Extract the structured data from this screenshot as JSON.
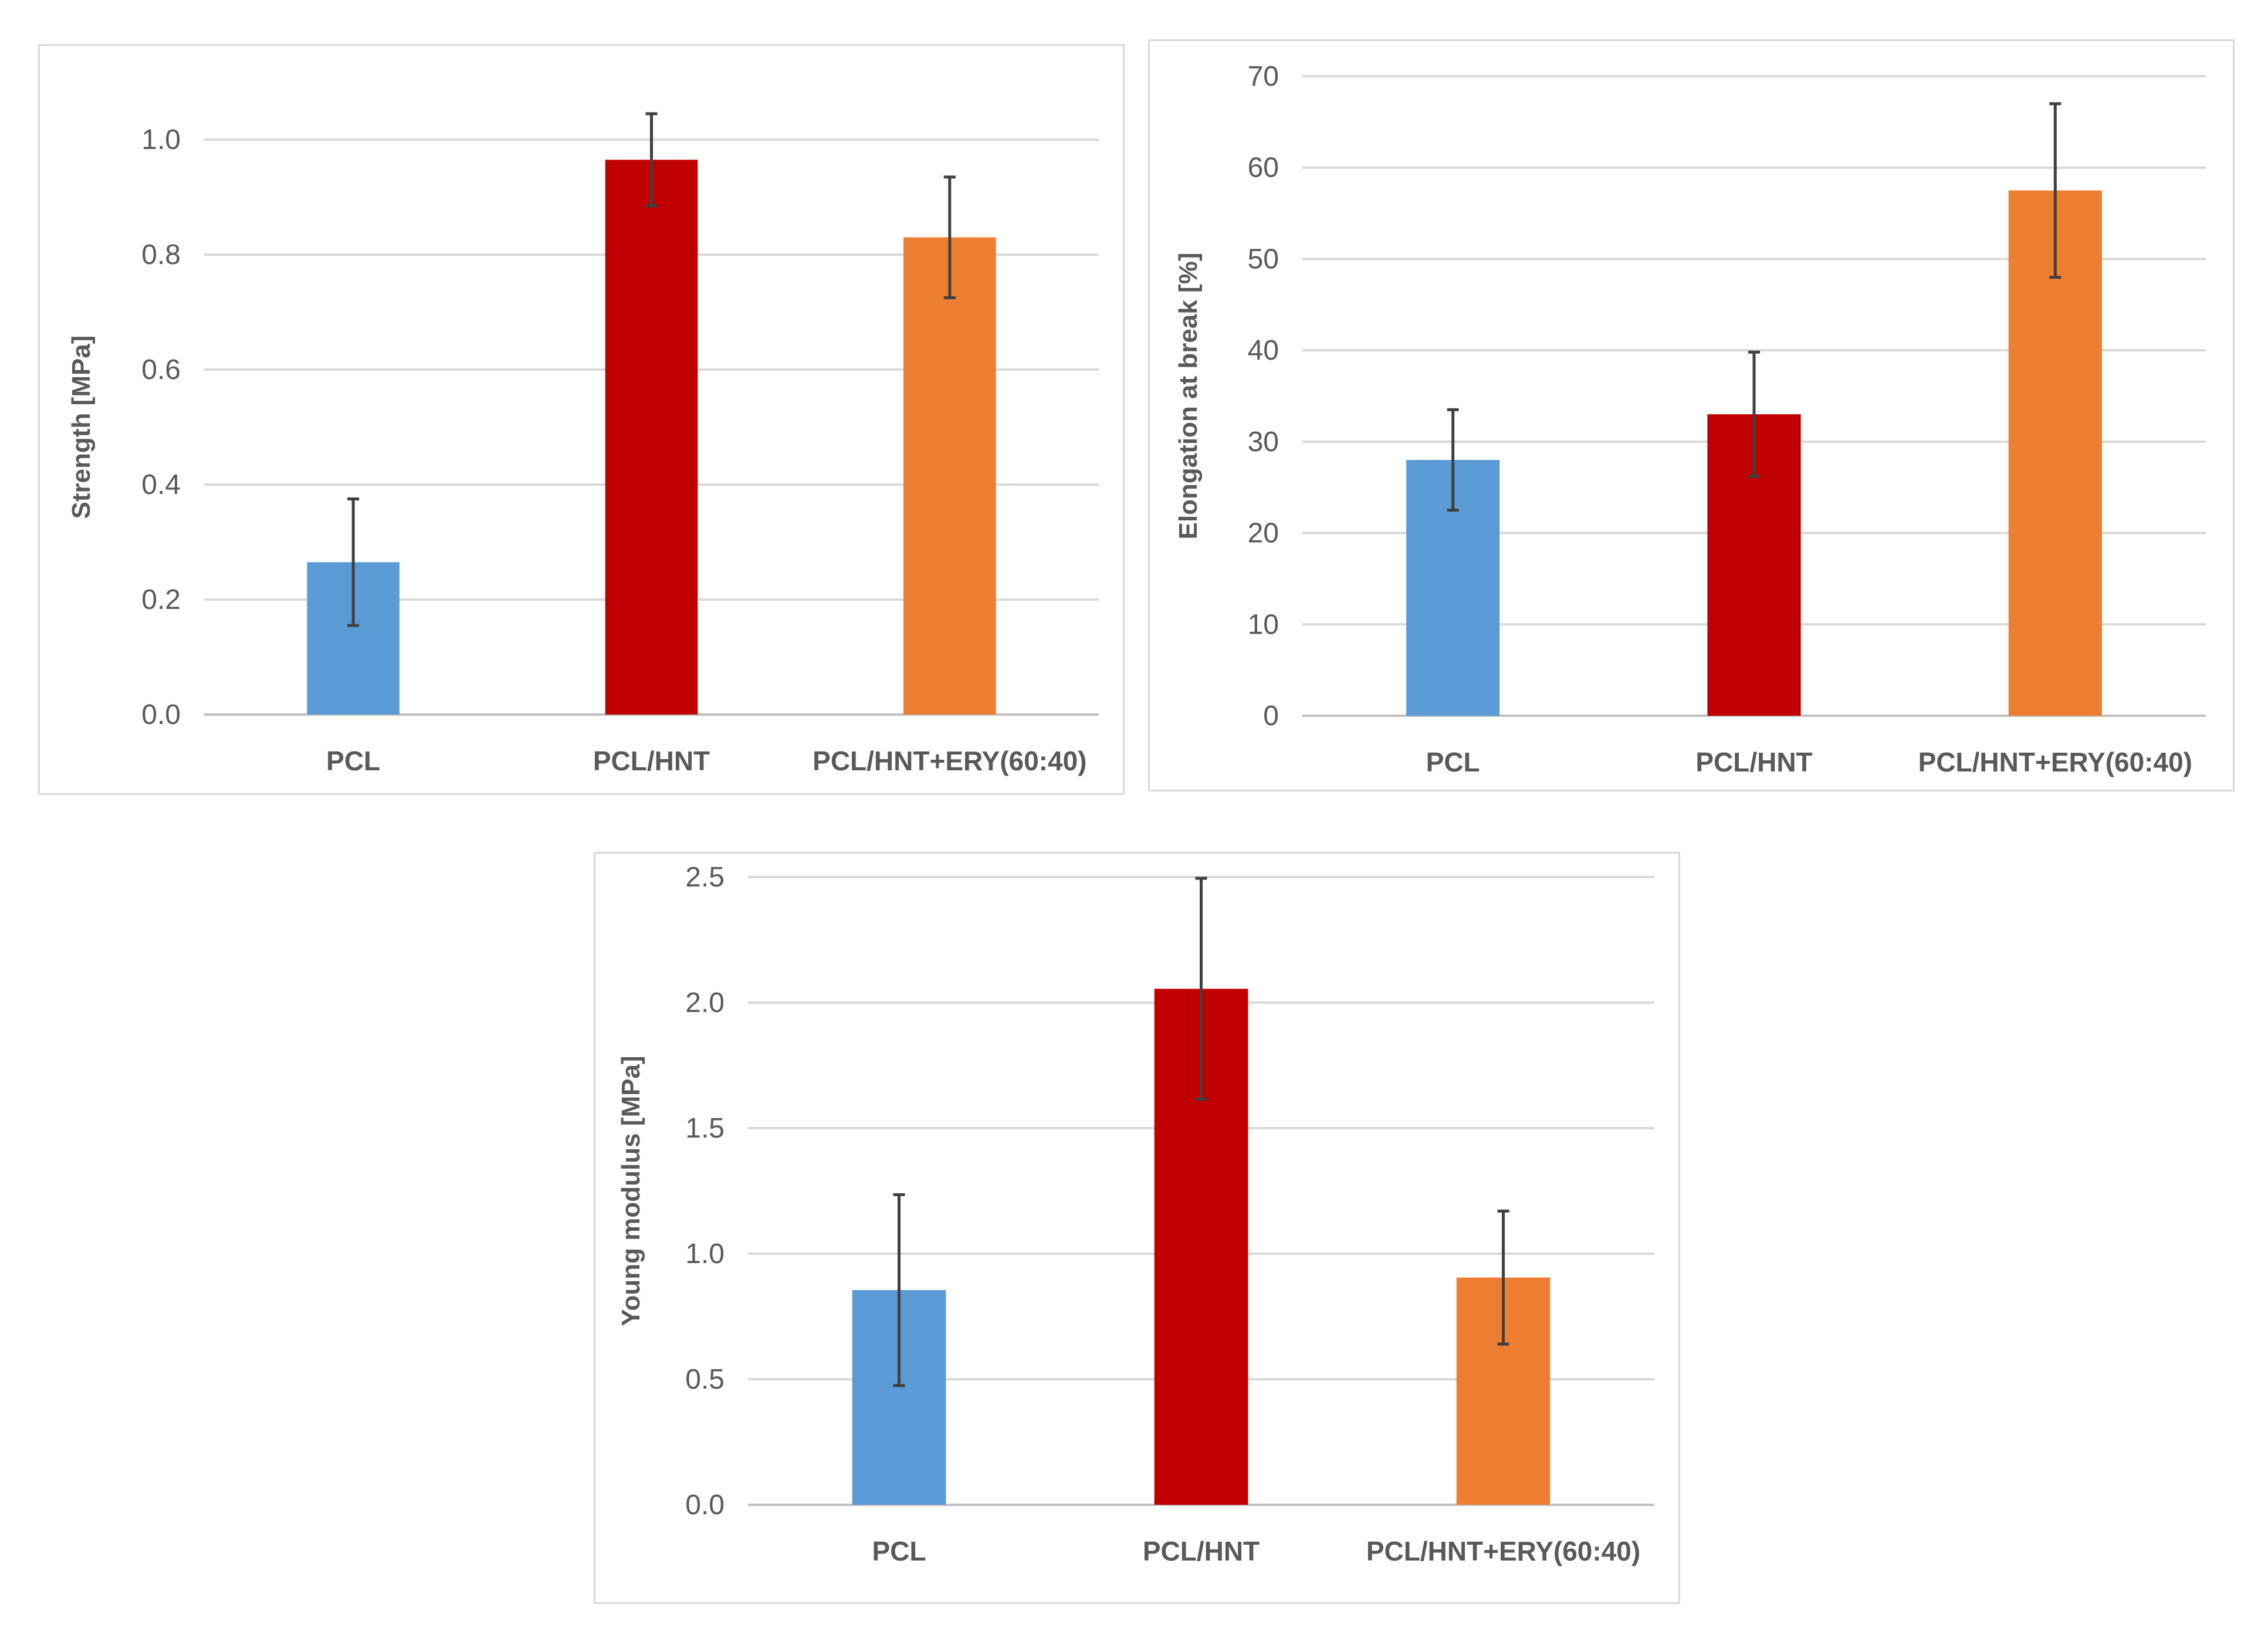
{
  "chart_data": [
    {
      "type": "bar",
      "categories": [
        "PCL",
        "PCL/HNT",
        "PCL/HNT+ERY(60:40)"
      ],
      "values": [
        0.265,
        0.965,
        0.83
      ],
      "errors": [
        0.11,
        0.08,
        0.105
      ],
      "colors": [
        "#5b9bd5",
        "#c00000",
        "#ed7d31"
      ],
      "ylabel": "Strength [MPa]",
      "ylim": [
        0,
        1.0
      ],
      "yticks": [
        "0.0",
        "0.2",
        "0.4",
        "0.6",
        "0.8",
        "1.0"
      ],
      "ytick_values": [
        0,
        0.2,
        0.4,
        0.6,
        0.8,
        1.0
      ],
      "grid": true
    },
    {
      "type": "bar",
      "categories": [
        "PCL",
        "PCL/HNT",
        "PCL/HNT+ERY(60:40)"
      ],
      "values": [
        28,
        33,
        57.5
      ],
      "errors": [
        5.5,
        6.8,
        9.5
      ],
      "colors": [
        "#5b9bd5",
        "#c00000",
        "#ed7d31"
      ],
      "ylabel": "Elongation at break [%]",
      "ylim": [
        0,
        70
      ],
      "yticks": [
        "0",
        "10",
        "20",
        "30",
        "40",
        "50",
        "60",
        "70"
      ],
      "ytick_values": [
        0,
        10,
        20,
        30,
        40,
        50,
        60,
        70
      ],
      "grid": true
    },
    {
      "type": "bar",
      "categories": [
        "PCL",
        "PCL/HNT",
        "PCL/HNT+ERY(60:40)"
      ],
      "values": [
        0.855,
        2.055,
        0.905
      ],
      "errors": [
        0.38,
        0.44,
        0.265
      ],
      "colors": [
        "#5b9bd5",
        "#c00000",
        "#ed7d31"
      ],
      "ylabel": "Young modulus [MPa]",
      "ylim": [
        0,
        2.5
      ],
      "yticks": [
        "0.0",
        "0.5",
        "1.0",
        "1.5",
        "2.0",
        "2.5"
      ],
      "ytick_values": [
        0,
        0.5,
        1.0,
        1.5,
        2.0,
        2.5
      ],
      "grid": true
    }
  ]
}
